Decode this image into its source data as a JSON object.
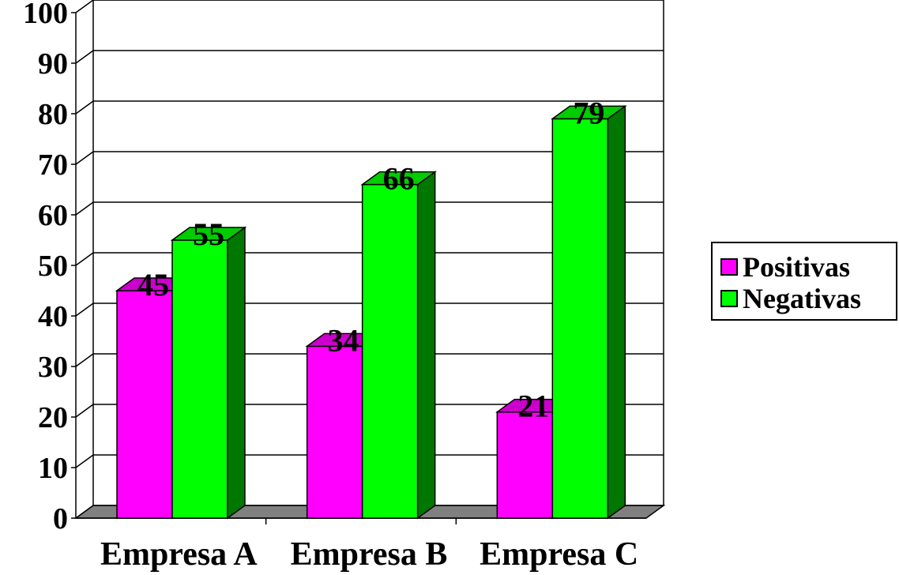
{
  "chart_data": {
    "type": "bar",
    "categories": [
      "Empresa A",
      "Empresa B",
      "Empresa C"
    ],
    "series": [
      {
        "name": "Positivas",
        "values": [
          45,
          34,
          21
        ],
        "color": "#ff00ff",
        "side_color": "#990099",
        "top_color": "#cc00cc"
      },
      {
        "name": "Negativas",
        "values": [
          55,
          66,
          79
        ],
        "color": "#00ff00",
        "side_color": "#007700",
        "top_color": "#00cc00"
      }
    ],
    "ylim": [
      0,
      100
    ],
    "yticks": [
      "0",
      "10",
      "20",
      "30",
      "40",
      "50",
      "60",
      "70",
      "80",
      "90",
      "100"
    ],
    "data_labels": true,
    "grid": true,
    "three_d": true,
    "legend_position": "right",
    "floor_color": "#808080"
  },
  "legend": {
    "items": [
      {
        "label": "Positivas",
        "color": "#ff00ff"
      },
      {
        "label": "Negativas",
        "color": "#00ff00"
      }
    ]
  }
}
